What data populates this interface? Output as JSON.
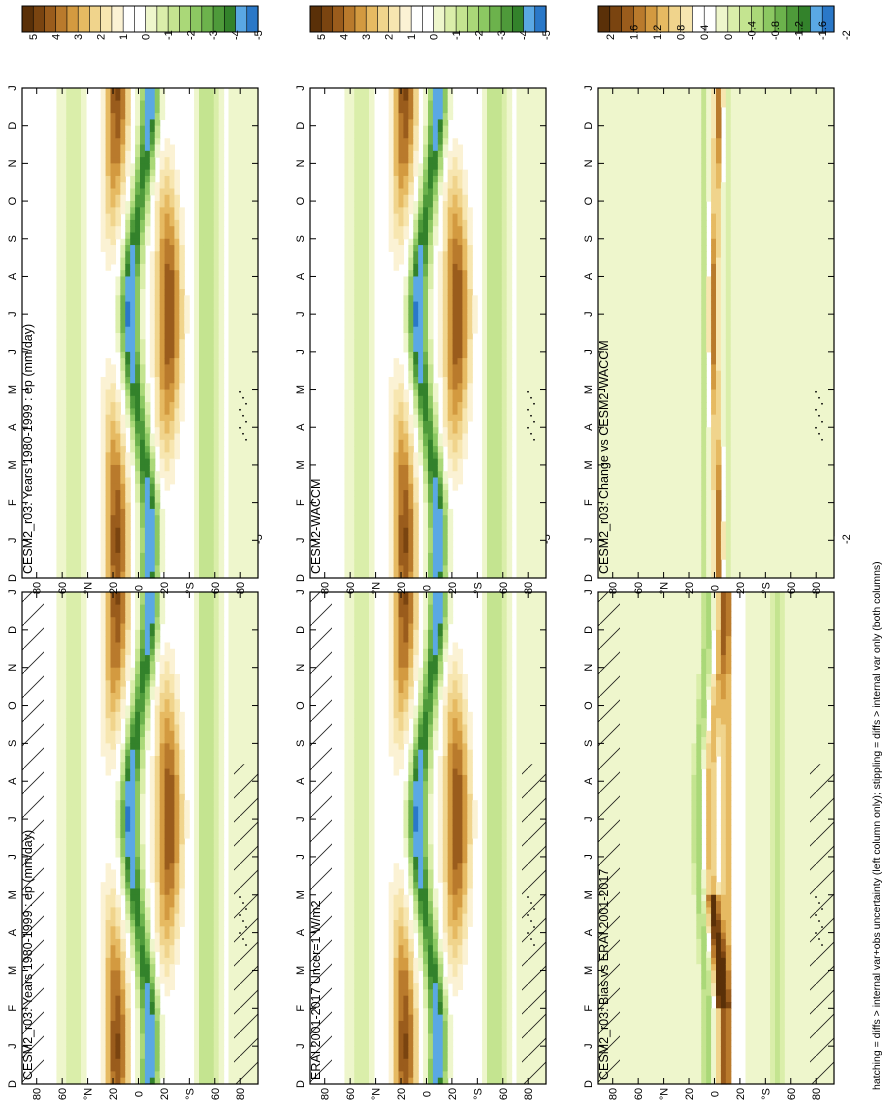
{
  "footer_note": "hatching = diffs > internal var+obs uncertainty (left column only); stippling = diffs > internal var only (both columns)",
  "month_labels": [
    "D",
    "J",
    "F",
    "M",
    "A",
    "M",
    "J",
    "J",
    "A",
    "S",
    "O",
    "N",
    "D",
    "J"
  ],
  "lat_labels": [
    "80",
    "60",
    "°N",
    "20",
    "0",
    "20",
    "°S",
    "60",
    "80"
  ],
  "colorbars": {
    "main": {
      "labels": [
        "5",
        "4",
        "3",
        "2",
        "1",
        "0",
        "-1",
        "-2",
        "-3",
        "-4",
        "-5"
      ],
      "colors": [
        "#5a3008",
        "#7a4410",
        "#9a5c1c",
        "#b97a2c",
        "#d39a40",
        "#e6ba62",
        "#f0d48c",
        "#f7e6b0",
        "#fbf2d4",
        "#ffffff",
        "#ffffff",
        "#eef6cc",
        "#daeeaa",
        "#c4e490",
        "#aad878",
        "#8cc862",
        "#6cb24c",
        "#4e9a3a",
        "#33822b",
        "#5aa8e4",
        "#2a78c8"
      ]
    },
    "diff": {
      "labels": [
        "2",
        "1.6",
        "1.2",
        "0.8",
        "0.4",
        "0",
        "-0.4",
        "-0.8",
        "-1.2",
        "-1.6",
        "-2"
      ],
      "colors": [
        "#5a3008",
        "#7a4410",
        "#9a5c1c",
        "#b97a2c",
        "#d39a40",
        "#e6ba62",
        "#f0d48c",
        "#f7e6b0",
        "#ffffff",
        "#ffffff",
        "#eef6cc",
        "#daeeaa",
        "#c4e490",
        "#aad878",
        "#8cc862",
        "#6cb24c",
        "#4e9a3a",
        "#33822b",
        "#5aa8e4",
        "#2a78c8"
      ]
    }
  },
  "chart_data": [
    {
      "type": "heatmap",
      "panel": "left-top",
      "title": "CESM2_r03: Years 1980-1999 : ep (mm/day)",
      "x": [
        "D",
        "J",
        "F",
        "M",
        "A",
        "M",
        "J",
        "J",
        "A",
        "S",
        "O",
        "N",
        "D",
        "J"
      ],
      "y": [
        "80",
        "60",
        "°N",
        "20",
        "0",
        "20",
        "°S",
        "60",
        "80"
      ],
      "colorbar": [
        5,
        4,
        3,
        2,
        1,
        0,
        -1,
        -2,
        -3,
        -4,
        -5
      ],
      "hatching": true,
      "stippling": true
    },
    {
      "type": "heatmap",
      "panel": "right-top",
      "title": "CESM2_r03: Years 1980-1999 : ep (mm/day)",
      "x": [
        "D",
        "J",
        "F",
        "M",
        "A",
        "M",
        "J",
        "J",
        "A",
        "S",
        "O",
        "N",
        "D",
        "J"
      ],
      "y": [
        "80",
        "60",
        "°N",
        "20",
        "0",
        "20",
        "°S",
        "60",
        "80"
      ],
      "colorbar": [
        5,
        4,
        3,
        2,
        1,
        0,
        -1,
        -2,
        -3,
        -4,
        -5
      ],
      "hatching": false,
      "stippling": true
    },
    {
      "type": "heatmap",
      "panel": "left-middle",
      "title": "ERAI 2001-2017 Uncer=1 W/m2",
      "x": [
        "D",
        "J",
        "F",
        "M",
        "A",
        "M",
        "J",
        "J",
        "A",
        "S",
        "O",
        "N",
        "D",
        "J"
      ],
      "y": [
        "80",
        "60",
        "°N",
        "20",
        "0",
        "20",
        "°S",
        "60",
        "80"
      ],
      "colorbar": [
        5,
        4,
        3,
        2,
        1,
        0,
        -1,
        -2,
        -3,
        -4,
        -5
      ],
      "hatching": true,
      "stippling": true
    },
    {
      "type": "heatmap",
      "panel": "right-middle",
      "title": "CESM2-WACCM",
      "x": [
        "D",
        "J",
        "F",
        "M",
        "A",
        "M",
        "J",
        "J",
        "A",
        "S",
        "O",
        "N",
        "D",
        "J"
      ],
      "y": [
        "80",
        "60",
        "°N",
        "20",
        "0",
        "20",
        "°S",
        "60",
        "80"
      ],
      "colorbar": [
        5,
        4,
        3,
        2,
        1,
        0,
        -1,
        -2,
        -3,
        -4,
        -5
      ],
      "hatching": false,
      "stippling": true
    },
    {
      "type": "heatmap",
      "panel": "left-bottom",
      "title": "CESM2_r03: Bias vs ERAI 2001-2017",
      "x": [
        "D",
        "J",
        "F",
        "M",
        "A",
        "M",
        "J",
        "J",
        "A",
        "S",
        "O",
        "N",
        "D",
        "J"
      ],
      "y": [
        "80",
        "60",
        "°N",
        "20",
        "0",
        "20",
        "°S",
        "60",
        "80"
      ],
      "colorbar": [
        2,
        1.6,
        1.2,
        0.8,
        0.4,
        0,
        -0.4,
        -0.8,
        -1.2,
        -1.6,
        -2
      ],
      "hatching": true,
      "stippling": true
    },
    {
      "type": "heatmap",
      "panel": "right-bottom",
      "title": "CESM2_r03: Change vs CESM2-WACCM",
      "x": [
        "D",
        "J",
        "F",
        "M",
        "A",
        "M",
        "J",
        "J",
        "A",
        "S",
        "O",
        "N",
        "D",
        "J"
      ],
      "y": [
        "80",
        "60",
        "°N",
        "20",
        "0",
        "20",
        "°S",
        "60",
        "80"
      ],
      "colorbar": [
        2,
        1.6,
        1.2,
        0.8,
        0.4,
        0,
        -0.4,
        -0.8,
        -1.2,
        -1.6,
        -2
      ],
      "hatching": false,
      "stippling": true
    }
  ]
}
